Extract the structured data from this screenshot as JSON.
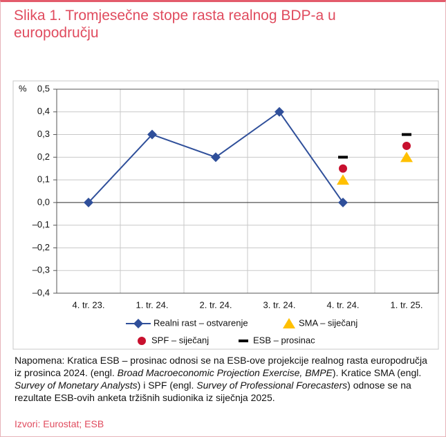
{
  "chart_data": {
    "type": "line",
    "title": "Slika 1. Tromjesečne stope rasta realnog BDP-a u europodručju",
    "ylabel": "%",
    "categories": [
      "4. tr. 23.",
      "1. tr. 24.",
      "2. tr. 24.",
      "3. tr. 24.",
      "4. tr. 24.",
      "1. tr. 25."
    ],
    "series": [
      {
        "name": "Realni rast – ostvarenje",
        "color": "#2f4f9a",
        "marker": "diamond",
        "values": [
          0,
          0.3,
          0.2,
          0.4,
          0,
          null
        ]
      },
      {
        "name": "SMA – siječanj",
        "color": "#ffc000",
        "marker": "triangle",
        "values": [
          null,
          null,
          null,
          null,
          0.1,
          0.2
        ]
      },
      {
        "name": "SPF – siječanj",
        "color": "#c8102e",
        "marker": "circle",
        "values": [
          null,
          null,
          null,
          null,
          0.15,
          0.25
        ]
      },
      {
        "name": "ESB – prosinac",
        "color": "#000000",
        "marker": "dash",
        "values": [
          null,
          null,
          null,
          null,
          0.2,
          0.3
        ]
      }
    ],
    "ylim": [
      -0.4,
      0.5
    ],
    "yticks": [
      {
        "value": -0.4,
        "label": "–0,4"
      },
      {
        "value": -0.3,
        "label": "–0,3"
      },
      {
        "value": -0.2,
        "label": "–0,2"
      },
      {
        "value": -0.1,
        "label": "–0,1"
      },
      {
        "value": 0,
        "label": "0,0"
      },
      {
        "value": 0.1,
        "label": "0,1"
      },
      {
        "value": 0.2,
        "label": "0,2"
      },
      {
        "value": 0.3,
        "label": "0,3"
      },
      {
        "value": 0.4,
        "label": "0,4"
      },
      {
        "value": 0.5,
        "label": "0,5"
      }
    ],
    "grid": true
  },
  "note": [
    {
      "text": "Napomena: Kratica ESB – prosinac odnosi se na ESB-ove projekcije realnog rasta europodručja iz prosinca 2024. (engl. ",
      "italic": false
    },
    {
      "text": "Broad Macroeconomic Projection Exercise, BMPE",
      "italic": true
    },
    {
      "text": "). Kratice SMA (engl. ",
      "italic": false
    },
    {
      "text": "Survey of Monetary Analysts",
      "italic": true
    },
    {
      "text": ") i SPF (engl. ",
      "italic": false
    },
    {
      "text": "Survey of Professional Forecasters",
      "italic": true
    },
    {
      "text": ") odnose se na rezultate ESB-ovih anketa tržišnih sudionika iz siječnja 2025.",
      "italic": false
    }
  ],
  "source": "Izvori: Eurostat; ESB"
}
